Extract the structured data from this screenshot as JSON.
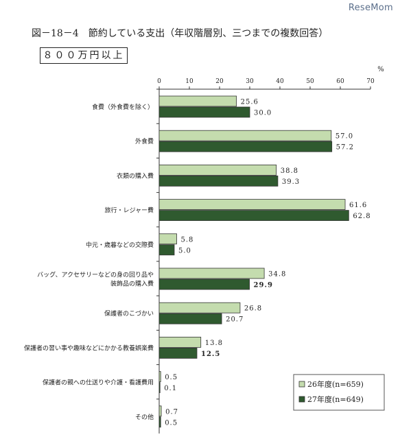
{
  "header": {
    "logo_text": "ReseMom",
    "title": "図－18－4　節約している支出（年収階層別、三つまでの複数回答）",
    "subtitle": "８００万円以上"
  },
  "chart_data": {
    "type": "bar",
    "orientation": "horizontal",
    "unit_label": "%",
    "xlim": [
      0,
      70
    ],
    "ticks": [
      0,
      10,
      20,
      30,
      40,
      50,
      60,
      70
    ],
    "categories": [
      [
        "食費（外食費を除く）"
      ],
      [
        "外食費"
      ],
      [
        "衣類の購入費"
      ],
      [
        "旅行・レジャー費"
      ],
      [
        "中元・歳暮などの交際費"
      ],
      [
        "バッグ、アクセサリーなどの身の回り品や",
        "装飾品の購入費"
      ],
      [
        "保護者のこづかい"
      ],
      [
        "保護者の習い事や趣味などにかかる教養娯楽費"
      ],
      [
        "保護者の親への仕送りや介護・看護費用"
      ],
      [
        "その他"
      ]
    ],
    "series": [
      {
        "name": "26年度(n=659)",
        "color": "#c4dcae",
        "values": [
          25.6,
          57.0,
          38.8,
          61.6,
          5.8,
          34.8,
          26.8,
          13.8,
          0.5,
          0.7
        ],
        "labels": [
          "25.6",
          "57.0",
          "38.8",
          "61.6",
          "5.8",
          "34.8",
          "26.8",
          "13.8",
          "0.5",
          "0.7"
        ]
      },
      {
        "name": "27年度(n=649)",
        "color": "#2f5a2f",
        "values": [
          30.0,
          57.2,
          39.3,
          62.8,
          5.0,
          29.9,
          20.7,
          12.5,
          0.1,
          0.5
        ],
        "labels": [
          "30.0",
          "57.2",
          "39.3",
          "62.8",
          "5.0",
          "29.9",
          "20.7",
          "12.5",
          "0.1",
          "0.5"
        ],
        "bold_label_indices": [
          5,
          7
        ]
      }
    ],
    "legend_position": "bottom-right",
    "grid": false
  }
}
